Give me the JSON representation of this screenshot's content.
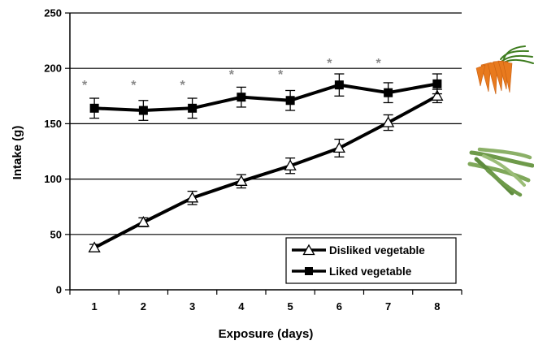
{
  "chart_data": {
    "type": "line",
    "xlabel": "Exposure (days)",
    "ylabel": "Intake (g)",
    "x": [
      1,
      2,
      3,
      4,
      5,
      6,
      7,
      8
    ],
    "xlim": [
      0.5,
      8.5
    ],
    "ylim": [
      0,
      250
    ],
    "yticks": [
      0,
      50,
      100,
      150,
      200,
      250
    ],
    "grid": "horizontal",
    "legend_position": "bottom-right",
    "significance_marker": "*",
    "significant_days": [
      1,
      2,
      3,
      4,
      5,
      6,
      7
    ],
    "series": [
      {
        "name": "Disliked vegetable",
        "marker": "open-triangle",
        "values": [
          38,
          61,
          83,
          98,
          112,
          128,
          151,
          175
        ],
        "error": [
          3,
          4,
          6,
          6,
          7,
          8,
          7,
          6
        ]
      },
      {
        "name": "Liked vegetable",
        "marker": "filled-square",
        "values": [
          164,
          162,
          164,
          174,
          171,
          185,
          178,
          186
        ],
        "error": [
          9,
          9,
          9,
          9,
          9,
          10,
          9,
          9
        ]
      }
    ]
  },
  "images": [
    {
      "icon": "carrots-image"
    },
    {
      "icon": "green-beans-image"
    }
  ]
}
